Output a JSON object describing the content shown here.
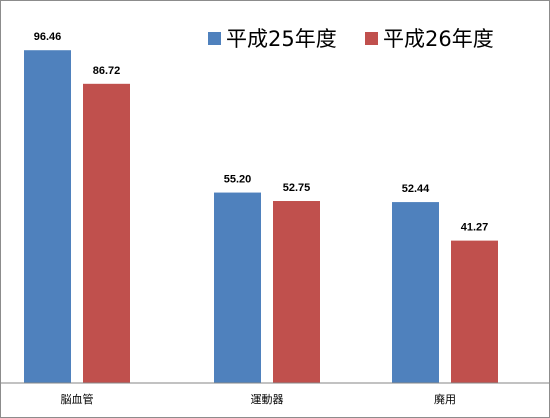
{
  "chart_data": {
    "type": "bar",
    "categories": [
      "脳血管",
      "運動器",
      "廃用"
    ],
    "series": [
      {
        "name": "平成25年度",
        "color": "#4f81bd",
        "values": [
          96.46,
          55.2,
          52.44
        ]
      },
      {
        "name": "平成26年度",
        "color": "#c0504d",
        "values": [
          86.72,
          52.75,
          41.27
        ]
      }
    ],
    "data_labels": [
      [
        "96.46",
        "55.20",
        "52.44"
      ],
      [
        "86.72",
        "52.75",
        "41.27"
      ]
    ],
    "ylim": [
      0,
      100
    ],
    "grid": false,
    "legend_position": "top-right",
    "title": "",
    "xlabel": "",
    "ylabel": ""
  }
}
